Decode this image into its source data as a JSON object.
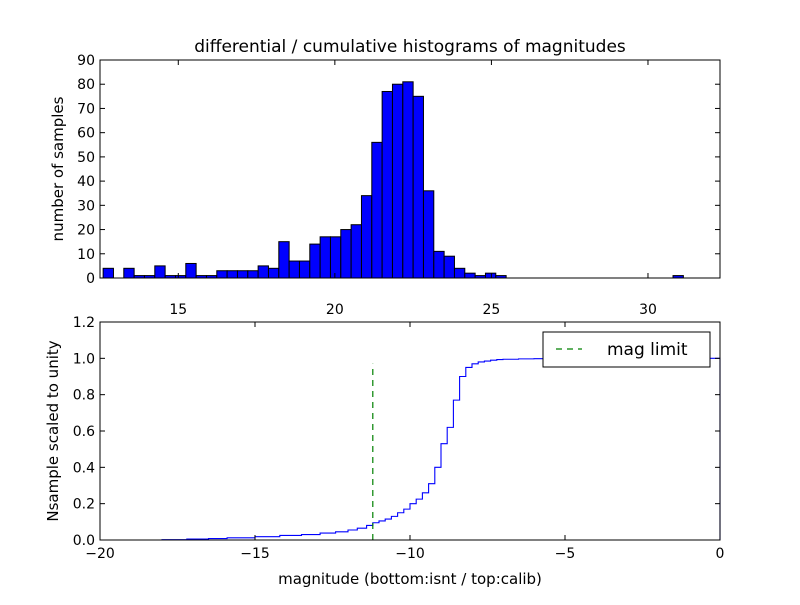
{
  "chart_data": [
    {
      "type": "bar",
      "subtype": "histogram",
      "title": "differential / cumulative histograms of magnitudes",
      "xlabel": "",
      "ylabel": "number of samples",
      "xlim": [
        12.5,
        32.3
      ],
      "ylim": [
        0,
        90
      ],
      "x_ticks": [
        15,
        20,
        25,
        30
      ],
      "y_ticks": [
        0,
        10,
        20,
        30,
        40,
        50,
        60,
        70,
        80,
        90
      ],
      "bin_width": 0.33,
      "bar_color": "#0000ff",
      "grid": false,
      "bins": [
        {
          "x": 12.6,
          "count": 4
        },
        {
          "x": 12.93,
          "count": 0
        },
        {
          "x": 13.26,
          "count": 4
        },
        {
          "x": 13.59,
          "count": 1
        },
        {
          "x": 13.92,
          "count": 1
        },
        {
          "x": 14.25,
          "count": 5
        },
        {
          "x": 14.58,
          "count": 1
        },
        {
          "x": 14.91,
          "count": 1
        },
        {
          "x": 15.24,
          "count": 6
        },
        {
          "x": 15.57,
          "count": 1
        },
        {
          "x": 15.9,
          "count": 1
        },
        {
          "x": 16.23,
          "count": 3
        },
        {
          "x": 16.56,
          "count": 3
        },
        {
          "x": 16.89,
          "count": 3
        },
        {
          "x": 17.22,
          "count": 3
        },
        {
          "x": 17.55,
          "count": 5
        },
        {
          "x": 17.88,
          "count": 4
        },
        {
          "x": 18.21,
          "count": 15
        },
        {
          "x": 18.54,
          "count": 7
        },
        {
          "x": 18.87,
          "count": 7
        },
        {
          "x": 19.2,
          "count": 14
        },
        {
          "x": 19.53,
          "count": 17
        },
        {
          "x": 19.86,
          "count": 17
        },
        {
          "x": 20.19,
          "count": 20
        },
        {
          "x": 20.52,
          "count": 22
        },
        {
          "x": 20.85,
          "count": 34
        },
        {
          "x": 21.18,
          "count": 56
        },
        {
          "x": 21.51,
          "count": 77
        },
        {
          "x": 21.84,
          "count": 80
        },
        {
          "x": 22.17,
          "count": 81
        },
        {
          "x": 22.5,
          "count": 75
        },
        {
          "x": 22.83,
          "count": 36
        },
        {
          "x": 23.16,
          "count": 11
        },
        {
          "x": 23.49,
          "count": 9
        },
        {
          "x": 23.82,
          "count": 4
        },
        {
          "x": 24.15,
          "count": 2
        },
        {
          "x": 24.48,
          "count": 1
        },
        {
          "x": 24.81,
          "count": 2
        },
        {
          "x": 25.14,
          "count": 1
        },
        {
          "x": 30.8,
          "count": 1
        }
      ]
    },
    {
      "type": "line",
      "subtype": "cumulative-step",
      "title": "",
      "xlabel": "magnitude (bottom:isnt / top:calib)",
      "ylabel": "Nsample scaled to unity",
      "xlim": [
        -20,
        0
      ],
      "ylim": [
        0,
        1.2
      ],
      "x_ticks": [
        -20,
        -15,
        -10,
        -5,
        0
      ],
      "x_tick_labels": [
        "−20",
        "−15",
        "−10",
        "−5",
        "0"
      ],
      "y_ticks": [
        0.0,
        0.2,
        0.4,
        0.6,
        0.8,
        1.0,
        1.2
      ],
      "y_tick_labels": [
        "0.0",
        "0.2",
        "0.4",
        "0.6",
        "0.8",
        "1.0",
        "1.2"
      ],
      "grid": false,
      "legend": {
        "position": "top-right",
        "entries": [
          "mag limit"
        ]
      },
      "cdf": {
        "color": "#0000ff",
        "x": [
          -20,
          -18.0,
          -17.2,
          -16.5,
          -15.9,
          -15.0,
          -14.2,
          -13.5,
          -12.9,
          -12.4,
          -12.0,
          -11.7,
          -11.4,
          -11.2,
          -11.0,
          -10.8,
          -10.6,
          -10.4,
          -10.2,
          -10.0,
          -9.8,
          -9.6,
          -9.4,
          -9.2,
          -9.0,
          -8.8,
          -8.6,
          -8.4,
          -8.2,
          -8.0,
          -7.8,
          -7.6,
          -7.4,
          -7.2,
          -7.0,
          -6.5,
          -6.0,
          -5.5,
          -5.0,
          -4.0,
          -3.0,
          -2.0,
          -1.0,
          -0.05
        ],
        "y": [
          0.0,
          0.002,
          0.005,
          0.008,
          0.012,
          0.018,
          0.025,
          0.03,
          0.038,
          0.045,
          0.055,
          0.065,
          0.08,
          0.095,
          0.105,
          0.115,
          0.13,
          0.15,
          0.17,
          0.2,
          0.225,
          0.26,
          0.31,
          0.4,
          0.53,
          0.62,
          0.77,
          0.9,
          0.95,
          0.97,
          0.98,
          0.985,
          0.99,
          0.993,
          0.995,
          0.997,
          0.998,
          0.999,
          1.0,
          1.0,
          1.0,
          1.0,
          1.0,
          1.0
        ]
      },
      "mag_limit": {
        "label": "mag limit",
        "x": -11.2,
        "y_top": 0.97,
        "color": "#008000",
        "style": "dashed"
      }
    }
  ]
}
